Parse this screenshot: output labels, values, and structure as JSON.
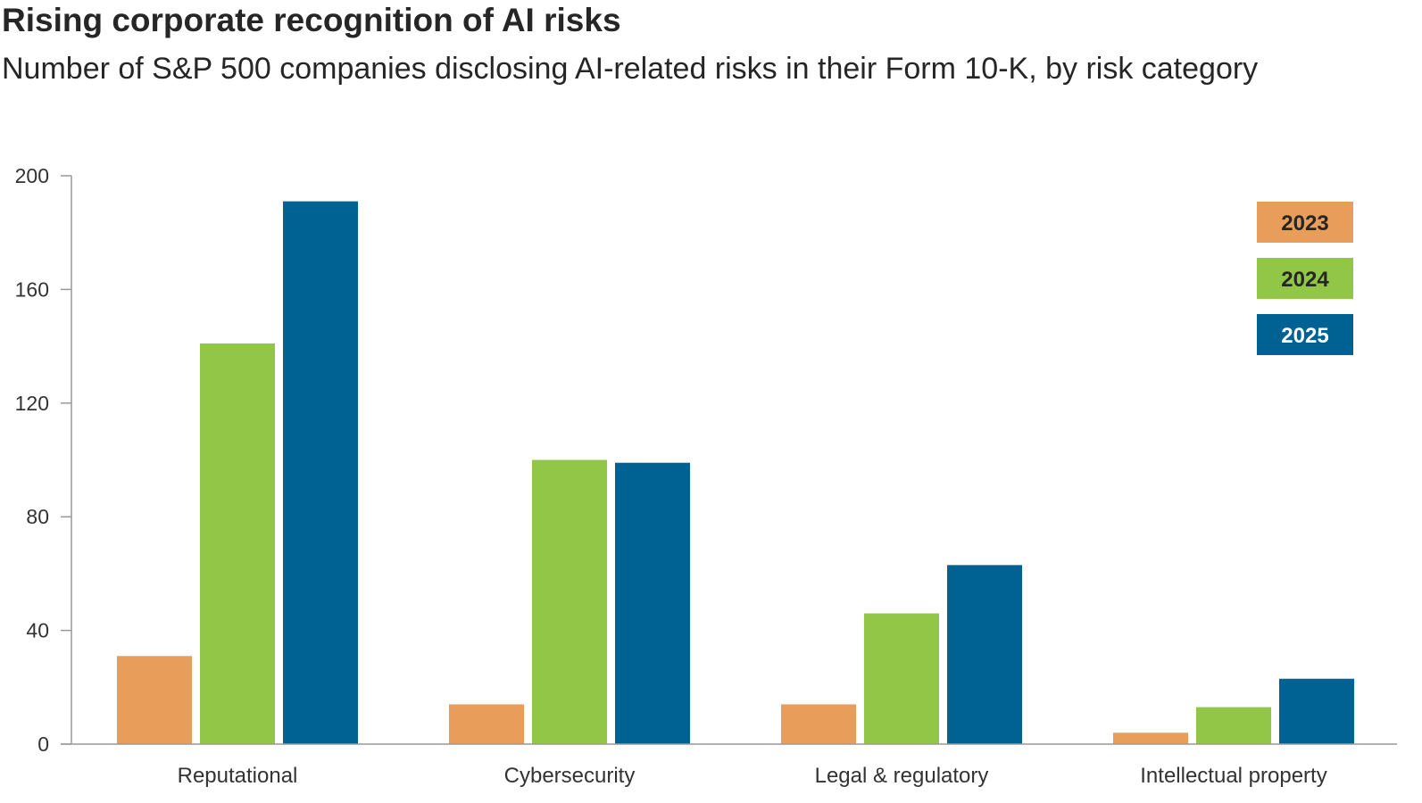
{
  "chart_data": {
    "type": "bar",
    "title": "Rising corporate recognition of AI risks",
    "subtitle": "Number of S&P 500 companies disclosing AI-related risks in their Form 10-K, by risk category",
    "categories": [
      "Reputational",
      "Cybersecurity",
      "Legal & regulatory",
      "Intellectual property"
    ],
    "series": [
      {
        "name": "2023",
        "color": "#E89E5A",
        "text_color": "#262626",
        "values": [
          31,
          14,
          14,
          4
        ]
      },
      {
        "name": "2024",
        "color": "#92C646",
        "text_color": "#262626",
        "values": [
          141,
          100,
          46,
          13
        ]
      },
      {
        "name": "2025",
        "color": "#006193",
        "text_color": "#ffffff",
        "values": [
          191,
          99,
          63,
          23
        ]
      }
    ],
    "yticks": [
      0,
      40,
      80,
      120,
      160,
      200
    ],
    "ylim": [
      0,
      200
    ],
    "xlabel": "",
    "ylabel": "",
    "legend": "top-right",
    "grid": false
  }
}
